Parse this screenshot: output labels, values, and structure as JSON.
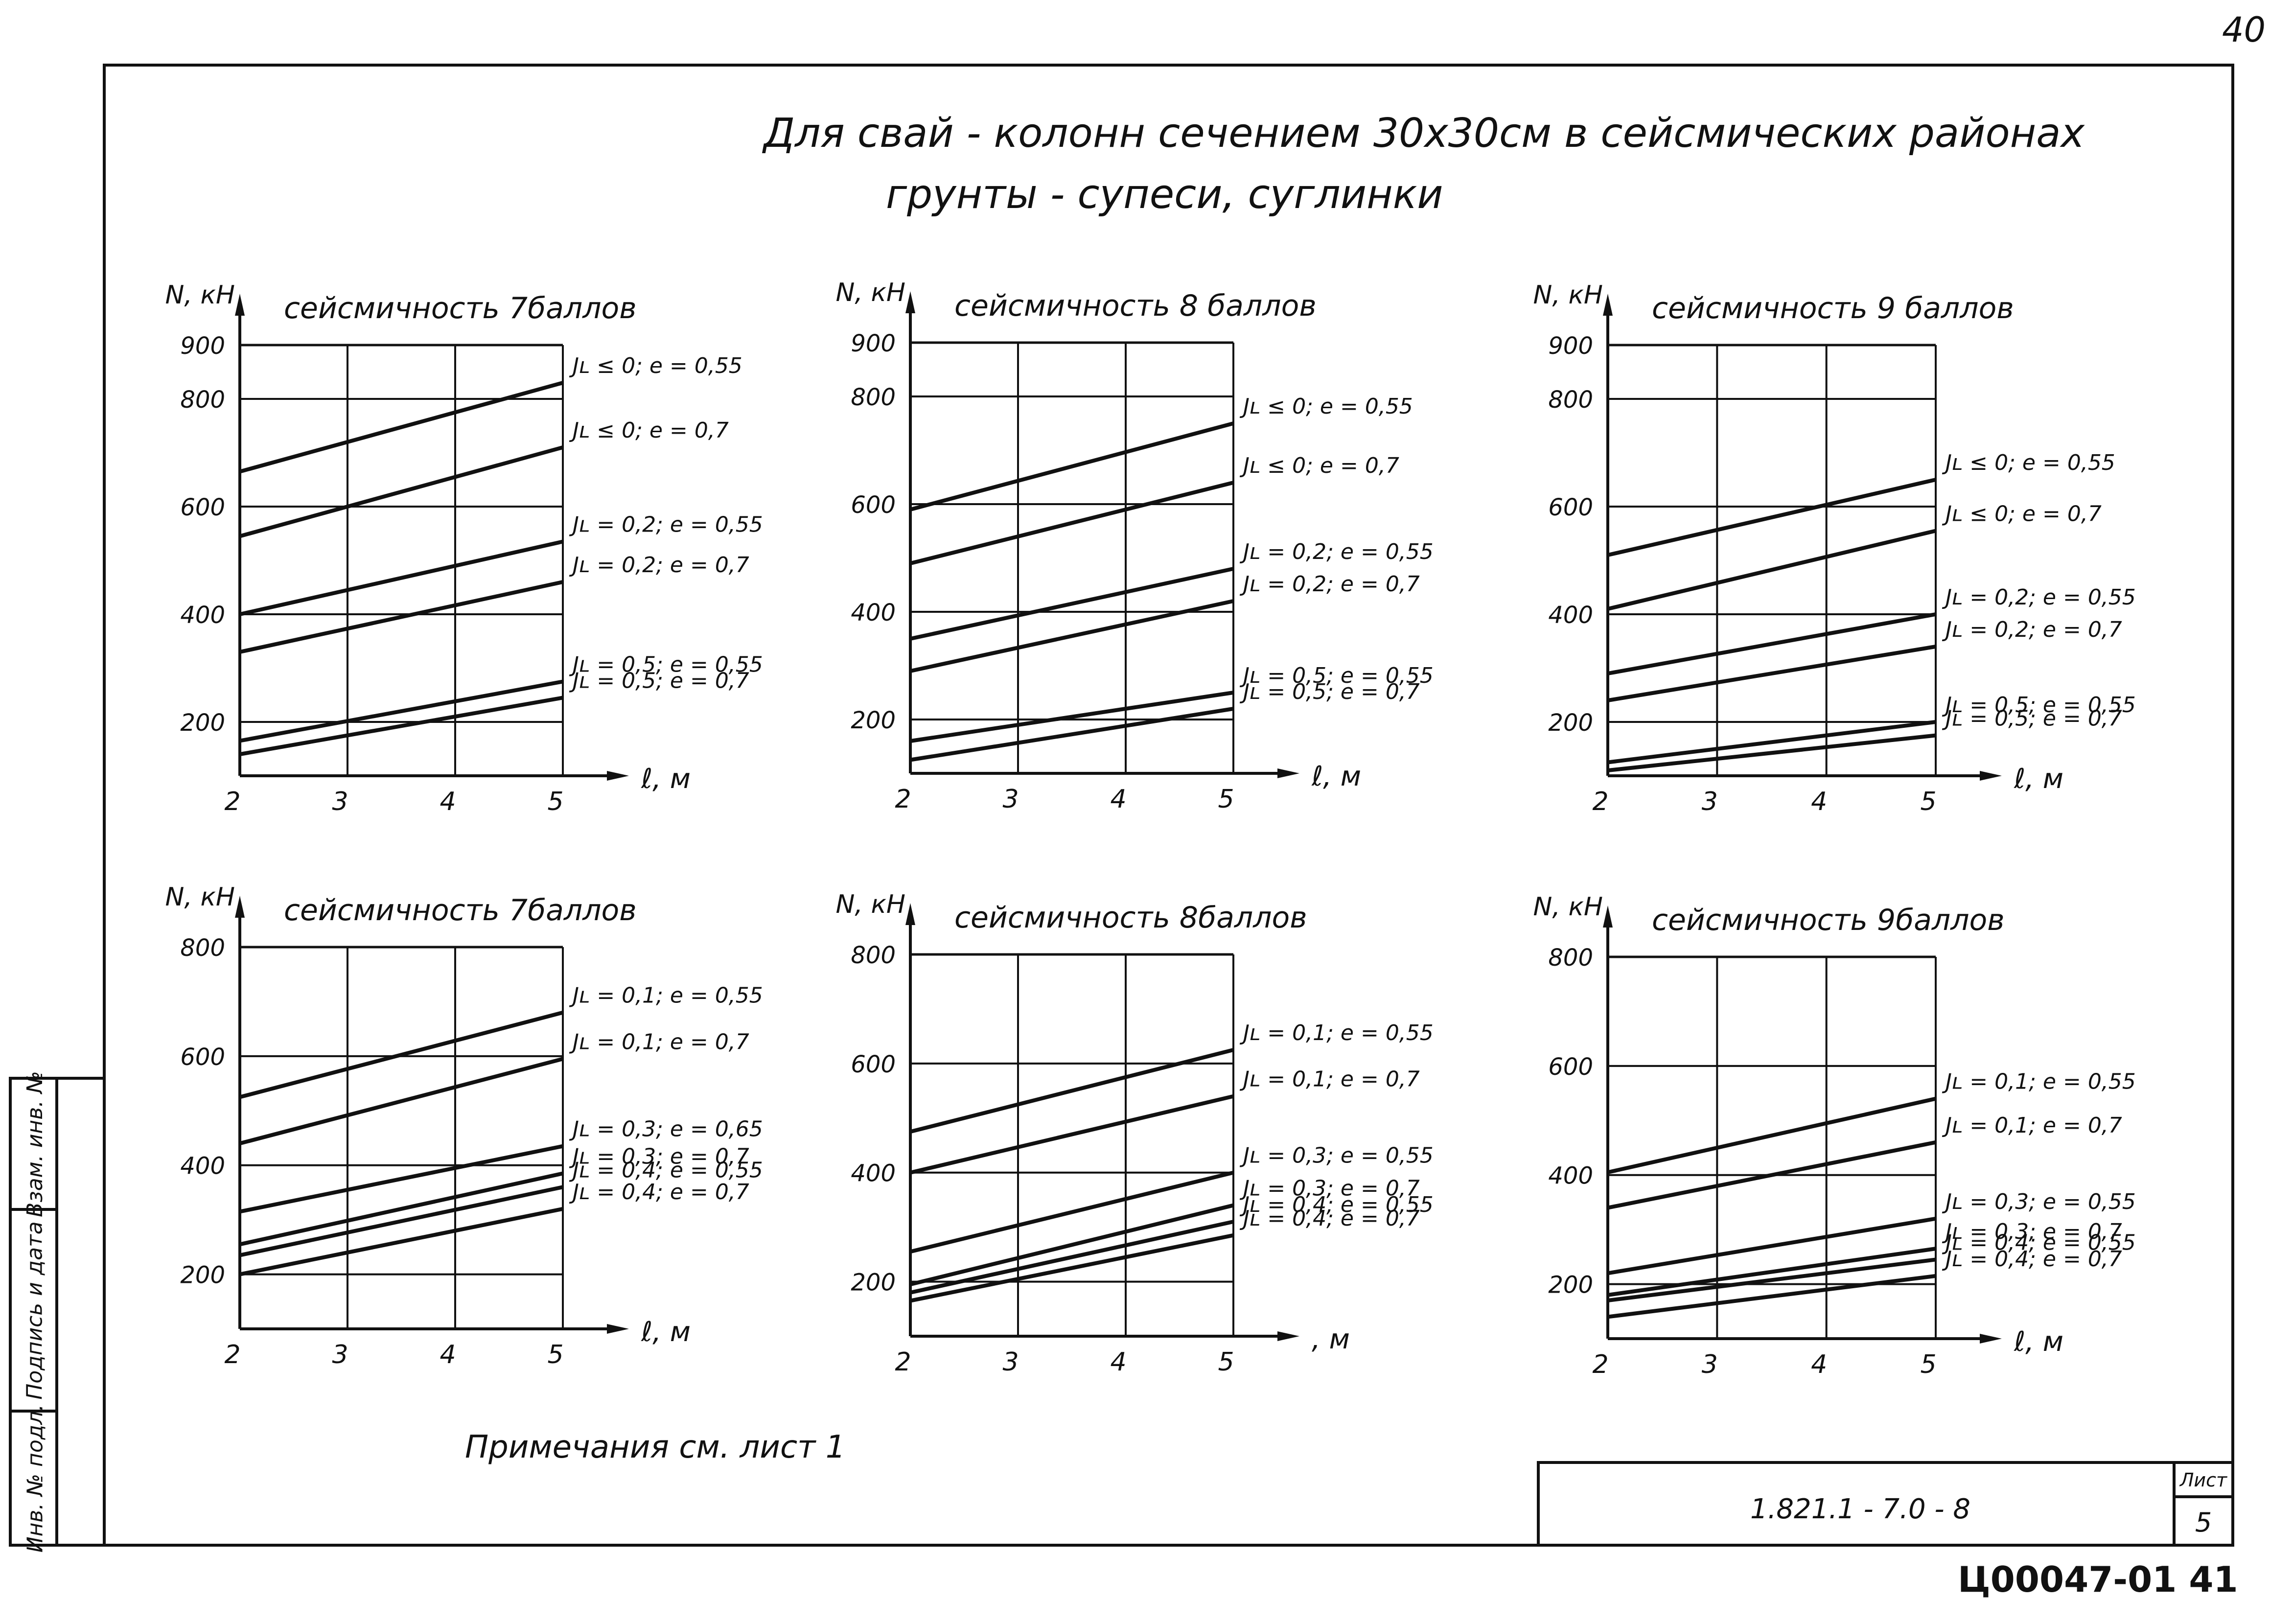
{
  "page_number": "40",
  "title_line1": "Для свай - колонн сечением 30х30см в сейсмических районах",
  "title_line2": "грунты - супеси, суглинки",
  "note": "Примечания  см.  лист  1",
  "stamp": {
    "code": "1.821.1 - 7.0 - 8",
    "sheet_label": "Лист",
    "sheet_number": "5"
  },
  "bottom_code": "Ц00047-01  41",
  "sidebar": {
    "inv_label": "Инв. № подл.",
    "sign_label": "Подпись и дата",
    "vzam_label": "Взам. инв. №"
  },
  "colors": {
    "ink": "#111111",
    "paper": "#ffffff"
  },
  "chart_data": [
    {
      "type": "line",
      "title": "сейсмичность 7баллов",
      "ylabel": "N, кН",
      "xlabel": "ℓ, м",
      "xlim": [
        2,
        5
      ],
      "ylim": [
        100,
        900
      ],
      "xticks": [
        "2",
        "3",
        "4",
        "5"
      ],
      "yticks": [
        "200",
        "400",
        "600",
        "800",
        "900"
      ],
      "ytick_values": [
        200,
        400,
        600,
        800,
        900
      ],
      "grid": true,
      "series": [
        {
          "name": "Jʟ ≤ 0; e = 0,55",
          "x": [
            2,
            5
          ],
          "y": [
            665,
            830
          ]
        },
        {
          "name": "Jʟ ≤ 0; e = 0,7",
          "x": [
            2,
            5
          ],
          "y": [
            545,
            710
          ]
        },
        {
          "name": "Jʟ = 0,2; e = 0,55",
          "x": [
            2,
            5
          ],
          "y": [
            400,
            535
          ]
        },
        {
          "name": "Jʟ = 0,2; e = 0,7",
          "x": [
            2,
            5
          ],
          "y": [
            330,
            460
          ]
        },
        {
          "name": "Jʟ = 0,5; e = 0,55",
          "x": [
            2,
            5
          ],
          "y": [
            165,
            275
          ]
        },
        {
          "name": "Jʟ = 0,5; e = 0,7",
          "x": [
            2,
            5
          ],
          "y": [
            140,
            245
          ]
        }
      ]
    },
    {
      "type": "line",
      "title": "сейсмичность 8 баллов",
      "ylabel": "N, кН",
      "xlabel": "ℓ, м",
      "xlim": [
        2,
        5
      ],
      "ylim": [
        100,
        900
      ],
      "xticks": [
        "2",
        "3",
        "4",
        "5"
      ],
      "yticks": [
        "200",
        "400",
        "600",
        "800",
        "900"
      ],
      "ytick_values": [
        200,
        400,
        600,
        800,
        900
      ],
      "grid": true,
      "series": [
        {
          "name": "Jʟ ≤ 0; e = 0,55",
          "x": [
            2,
            5
          ],
          "y": [
            590,
            750
          ]
        },
        {
          "name": "Jʟ ≤ 0; e = 0,7",
          "x": [
            2,
            5
          ],
          "y": [
            490,
            640
          ]
        },
        {
          "name": "Jʟ = 0,2; e = 0,55",
          "x": [
            2,
            5
          ],
          "y": [
            350,
            480
          ]
        },
        {
          "name": "Jʟ = 0,2; e = 0,7",
          "x": [
            2,
            5
          ],
          "y": [
            290,
            420
          ]
        },
        {
          "name": "Jʟ = 0,5; e = 0,55",
          "x": [
            2,
            5
          ],
          "y": [
            160,
            250
          ]
        },
        {
          "name": "Jʟ = 0,5; e = 0,7",
          "x": [
            2,
            5
          ],
          "y": [
            125,
            220
          ]
        }
      ]
    },
    {
      "type": "line",
      "title": "сейсмичность 9 баллов",
      "ylabel": "N, кН",
      "xlabel": "ℓ, м",
      "xlim": [
        2,
        5
      ],
      "ylim": [
        100,
        900
      ],
      "xticks": [
        "2",
        "3",
        "4",
        "5"
      ],
      "yticks": [
        "200",
        "400",
        "600",
        "800",
        "900"
      ],
      "ytick_values": [
        200,
        400,
        600,
        800,
        900
      ],
      "grid": true,
      "series": [
        {
          "name": "Jʟ ≤ 0; e = 0,55",
          "x": [
            2,
            5
          ],
          "y": [
            510,
            650
          ]
        },
        {
          "name": "Jʟ ≤ 0; e = 0,7",
          "x": [
            2,
            5
          ],
          "y": [
            410,
            555
          ]
        },
        {
          "name": "Jʟ = 0,2; e = 0,55",
          "x": [
            2,
            5
          ],
          "y": [
            290,
            400
          ]
        },
        {
          "name": "Jʟ = 0,2; e = 0,7",
          "x": [
            2,
            5
          ],
          "y": [
            240,
            340
          ]
        },
        {
          "name": "Jʟ = 0,5; e = 0,55",
          "x": [
            2,
            5
          ],
          "y": [
            125,
            200
          ]
        },
        {
          "name": "Jʟ = 0,5; e = 0,7",
          "x": [
            2,
            5
          ],
          "y": [
            110,
            175
          ]
        }
      ]
    },
    {
      "type": "line",
      "title": "сейсмичность 7баллов",
      "ylabel": "N, кН",
      "xlabel": "ℓ, м",
      "xlim": [
        2,
        5
      ],
      "ylim": [
        100,
        800
      ],
      "xticks": [
        "2",
        "3",
        "4",
        "5"
      ],
      "yticks": [
        "200",
        "400",
        "600",
        "800"
      ],
      "ytick_values": [
        200,
        400,
        600,
        800
      ],
      "grid": true,
      "series": [
        {
          "name": "Jʟ = 0,1; e = 0,55",
          "x": [
            2,
            5
          ],
          "y": [
            525,
            680
          ]
        },
        {
          "name": "Jʟ = 0,1; e = 0,7",
          "x": [
            2,
            5
          ],
          "y": [
            440,
            595
          ]
        },
        {
          "name": "Jʟ = 0,3; e = 0,65",
          "x": [
            2,
            5
          ],
          "y": [
            315,
            435
          ]
        },
        {
          "name": "Jʟ = 0,3; e = 0,7",
          "x": [
            2,
            5
          ],
          "y": [
            255,
            385
          ]
        },
        {
          "name": "Jʟ = 0,4; e = 0,55",
          "x": [
            2,
            5
          ],
          "y": [
            235,
            360
          ]
        },
        {
          "name": "Jʟ = 0,4; e = 0,7",
          "x": [
            2,
            5
          ],
          "y": [
            200,
            320
          ]
        }
      ]
    },
    {
      "type": "line",
      "title": "сейсмичность 8баллов",
      "ylabel": "N, кН",
      "xlabel": ", м",
      "xlim": [
        2,
        5
      ],
      "ylim": [
        100,
        800
      ],
      "xticks": [
        "2",
        "3",
        "4",
        "5"
      ],
      "yticks": [
        "200",
        "400",
        "600",
        "800"
      ],
      "ytick_values": [
        200,
        400,
        600,
        800
      ],
      "grid": true,
      "series": [
        {
          "name": "Jʟ = 0,1; e = 0,55",
          "x": [
            2,
            5
          ],
          "y": [
            475,
            625
          ]
        },
        {
          "name": "Jʟ = 0,1; e = 0,7",
          "x": [
            2,
            5
          ],
          "y": [
            400,
            540
          ]
        },
        {
          "name": "Jʟ = 0,3; e = 0,55",
          "x": [
            2,
            5
          ],
          "y": [
            255,
            400
          ]
        },
        {
          "name": "Jʟ = 0,3; e = 0,7",
          "x": [
            2,
            5
          ],
          "y": [
            195,
            340
          ]
        },
        {
          "name": "Jʟ = 0,4; e = 0,55",
          "x": [
            2,
            5
          ],
          "y": [
            180,
            310
          ]
        },
        {
          "name": "Jʟ = 0,4; e = 0,7",
          "x": [
            2,
            5
          ],
          "y": [
            165,
            285
          ]
        }
      ]
    },
    {
      "type": "line",
      "title": "сейсмичность 9баллов",
      "ylabel": "N, кН",
      "xlabel": "ℓ, м",
      "xlim": [
        2,
        5
      ],
      "ylim": [
        100,
        800
      ],
      "xticks": [
        "2",
        "3",
        "4",
        "5"
      ],
      "yticks": [
        "200",
        "400",
        "600",
        "800"
      ],
      "ytick_values": [
        200,
        400,
        600,
        800
      ],
      "grid": true,
      "series": [
        {
          "name": "Jʟ = 0,1; e = 0,55",
          "x": [
            2,
            5
          ],
          "y": [
            405,
            540
          ]
        },
        {
          "name": "Jʟ = 0,1; e = 0,7",
          "x": [
            2,
            5
          ],
          "y": [
            340,
            460
          ]
        },
        {
          "name": "Jʟ = 0,3; e = 0,55",
          "x": [
            2,
            5
          ],
          "y": [
            220,
            320
          ]
        },
        {
          "name": "Jʟ = 0,3; e = 0,7",
          "x": [
            2,
            5
          ],
          "y": [
            180,
            265
          ]
        },
        {
          "name": "Jʟ = 0,4; e = 0,55",
          "x": [
            2,
            5
          ],
          "y": [
            170,
            245
          ]
        },
        {
          "name": "Jʟ = 0,4; e = 0,7",
          "x": [
            2,
            5
          ],
          "y": [
            140,
            215
          ]
        }
      ]
    }
  ]
}
